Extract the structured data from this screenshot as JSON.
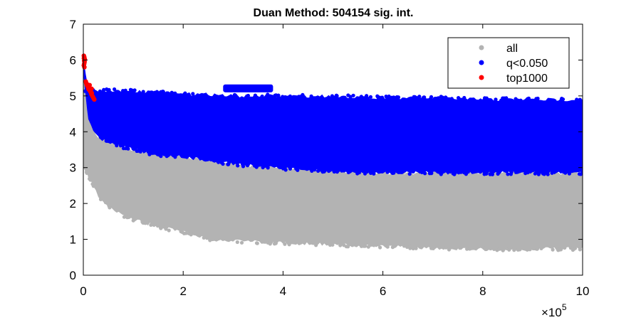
{
  "chart_data": {
    "type": "scatter",
    "title": "Duan Method: 504154 sig. int.",
    "xlabel": "",
    "ylabel": "",
    "xlim": [
      0,
      1000000
    ],
    "ylim": [
      0,
      7
    ],
    "x_ticks": [
      0,
      200000,
      400000,
      600000,
      800000,
      1000000
    ],
    "x_tick_labels": [
      "0",
      "2",
      "4",
      "6",
      "8",
      "10"
    ],
    "y_ticks": [
      0,
      1,
      2,
      3,
      4,
      5,
      6,
      7
    ],
    "y_tick_labels": [
      "0",
      "1",
      "2",
      "3",
      "4",
      "5",
      "6",
      "7"
    ],
    "x_exponent_label": {
      "base": "×10",
      "exponent": "5"
    },
    "grid": false,
    "legend_position": "top-right",
    "series": [
      {
        "name": "all",
        "color": "#b3b3b3",
        "band": {
          "x": [
            0,
            5000,
            10000,
            20000,
            30000,
            50000,
            75000,
            100000,
            150000,
            200000,
            250000,
            300000,
            400000,
            500000,
            600000,
            700000,
            800000,
            900000,
            1000000
          ],
          "lower": [
            3.0,
            2.9,
            2.75,
            2.5,
            2.2,
            1.95,
            1.7,
            1.55,
            1.35,
            1.2,
            1.0,
            0.95,
            0.9,
            0.85,
            0.8,
            0.75,
            0.72,
            0.72,
            0.75
          ],
          "upper": [
            5.7,
            4.9,
            4.4,
            4.05,
            3.85,
            3.7,
            3.58,
            3.5,
            3.35,
            3.3,
            3.2,
            3.1,
            2.98,
            2.9,
            2.85,
            2.85,
            2.85,
            2.85,
            2.85
          ]
        }
      },
      {
        "name": "q<0.050",
        "color": "#0000ff",
        "band": {
          "x": [
            0,
            5000,
            10000,
            20000,
            30000,
            50000,
            75000,
            100000,
            150000,
            200000,
            250000,
            300000,
            400000,
            500000,
            600000,
            700000,
            800000,
            900000,
            1000000
          ],
          "lower": [
            5.6,
            4.9,
            4.4,
            4.05,
            3.85,
            3.7,
            3.58,
            3.5,
            3.35,
            3.3,
            3.2,
            3.1,
            2.98,
            2.9,
            2.85,
            2.85,
            2.85,
            2.85,
            2.85
          ],
          "upper": [
            6.0,
            5.6,
            5.2,
            5.15,
            5.15,
            5.15,
            5.15,
            5.15,
            5.1,
            5.05,
            5.05,
            5.0,
            5.0,
            5.0,
            4.95,
            4.95,
            4.9,
            4.9,
            4.9
          ]
        },
        "cluster": {
          "x_range": [
            280000,
            380000
          ],
          "y_range": [
            5.1,
            5.32
          ]
        }
      },
      {
        "name": "top1000",
        "color": "#ff0000",
        "points": [
          [
            1000,
            6.12
          ],
          [
            1200,
            6.05
          ],
          [
            1500,
            5.98
          ],
          [
            1800,
            5.9
          ],
          [
            2000,
            6.08
          ],
          [
            2500,
            5.95
          ],
          [
            3000,
            6.02
          ],
          [
            1000,
            5.85
          ],
          [
            2200,
            5.8
          ],
          [
            5000,
            5.4
          ],
          [
            6000,
            5.35
          ],
          [
            7000,
            5.3
          ],
          [
            8000,
            5.32
          ],
          [
            9000,
            5.25
          ],
          [
            10000,
            5.2
          ],
          [
            11000,
            5.18
          ],
          [
            12000,
            5.22
          ],
          [
            13000,
            5.15
          ],
          [
            14000,
            5.12
          ],
          [
            15000,
            5.1
          ],
          [
            16000,
            5.05
          ],
          [
            17000,
            5.08
          ],
          [
            18000,
            5.0
          ],
          [
            19000,
            4.98
          ],
          [
            20000,
            4.95
          ],
          [
            21000,
            4.92
          ],
          [
            22000,
            4.9
          ],
          [
            16500,
            5.2
          ],
          [
            12500,
            5.3
          ]
        ]
      }
    ]
  }
}
